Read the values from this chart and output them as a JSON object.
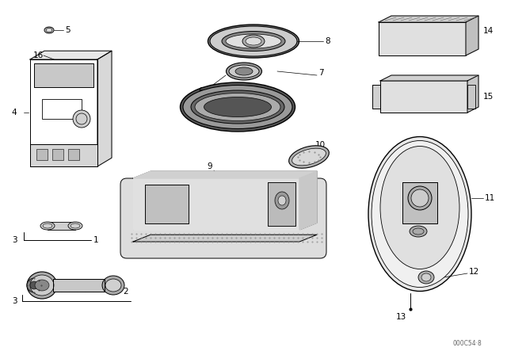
{
  "bg_color": "#ffffff",
  "fig_width": 6.4,
  "fig_height": 4.48,
  "dpi": 100,
  "watermark": "000C54·8",
  "line_color": "#000000",
  "lw": 0.7,
  "label_fontsize": 7.5
}
